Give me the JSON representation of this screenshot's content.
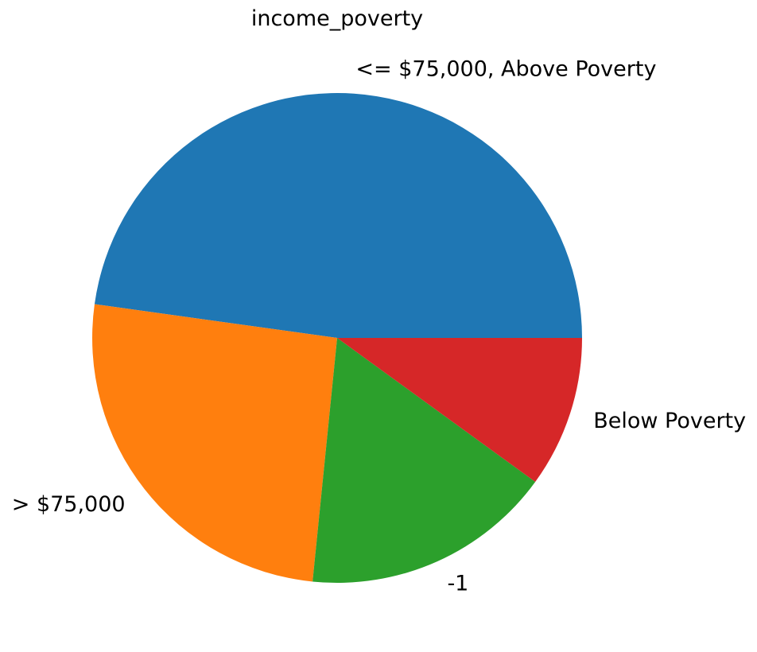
{
  "chart_data": {
    "type": "pie",
    "title": "income_poverty",
    "slices": [
      {
        "label": "<= $75,000, Above Poverty",
        "value": 47.8,
        "color": "#1f77b4"
      },
      {
        "label": "> $75,000",
        "value": 25.6,
        "color": "#ff7f0e"
      },
      {
        "label": "-1",
        "value": 16.6,
        "color": "#2ca02c"
      },
      {
        "label": "Below Poverty",
        "value": 10.0,
        "color": "#d62728"
      }
    ],
    "start_angle_deg": 0,
    "direction": "counterclockwise",
    "legend": "none"
  }
}
